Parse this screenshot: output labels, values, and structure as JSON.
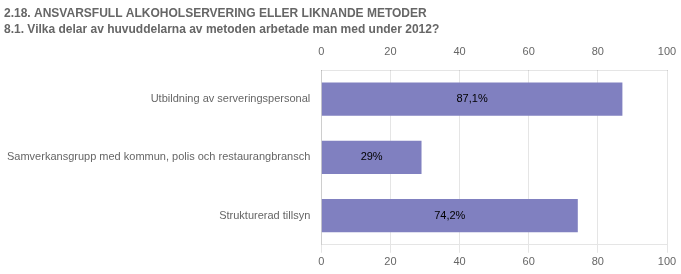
{
  "chart_data": {
    "type": "bar",
    "orientation": "horizontal",
    "title": "2.18. ANSVARSFULL ALKOHOLSERVERING ELLER LIKNANDE METODER",
    "subtitle": "8.1. Vilka delar av huvuddelarna av metoden arbetade man med under 2012?",
    "categories": [
      "Utbildning av serveringspersonal",
      "Samverkansgrupp med kommun, polis och restaurangbransch",
      "Strukturerad tillsyn"
    ],
    "values": [
      87.1,
      29.0,
      74.2
    ],
    "value_labels": [
      "87,1%",
      "29%",
      "74,2%"
    ],
    "data_labels": true,
    "color": "#8080c0",
    "xlim": [
      0,
      100
    ],
    "xticks": [
      0,
      20,
      40,
      60,
      80,
      100
    ],
    "grid": true
  }
}
